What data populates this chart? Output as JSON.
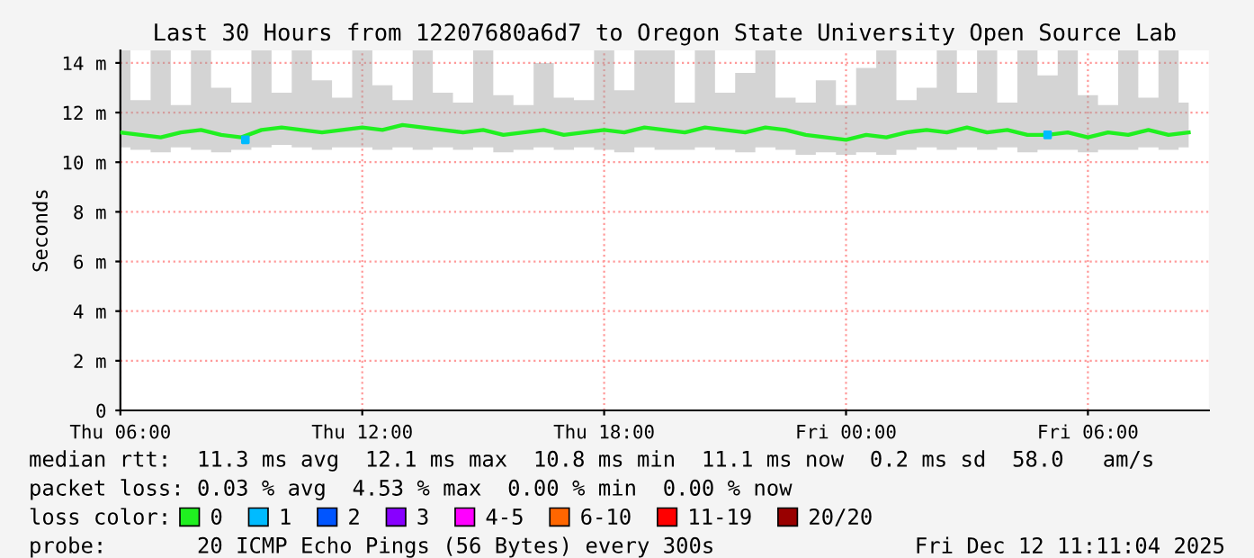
{
  "chart_data": {
    "type": "line",
    "title": "Last 30 Hours from 12207680a6d7 to Oregon State University Open Source Lab",
    "ylabel": "Seconds",
    "xlim": [
      "2025-12-11T06:00",
      "2025-12-12T09:00"
    ],
    "xticks": [
      {
        "value": "2025-12-11T06:00",
        "label": "Thu 06:00"
      },
      {
        "value": "2025-12-11T12:00",
        "label": "Thu 12:00"
      },
      {
        "value": "2025-12-11T18:00",
        "label": "Thu 18:00"
      },
      {
        "value": "2025-12-12T00:00",
        "label": "Fri 00:00"
      },
      {
        "value": "2025-12-12T06:00",
        "label": "Fri 06:00"
      }
    ],
    "ylim": [
      0,
      14.5
    ],
    "yticks": [
      0,
      {
        "value": 2,
        "label": "2 m"
      },
      {
        "value": 4,
        "label": "4 m"
      },
      {
        "value": 6,
        "label": "6 m"
      },
      {
        "value": 8,
        "label": "8 m"
      },
      {
        "value": 10,
        "label": "10 m"
      },
      {
        "value": 12,
        "label": "12 m"
      },
      {
        "value": 14,
        "label": "14 m"
      }
    ],
    "grid": true,
    "legend": "bottom",
    "legend_title": "loss color:",
    "series": [
      {
        "name": "0",
        "color": "#20f020",
        "x": [
          "2025-12-11T06:00",
          "2025-12-11T06:30",
          "2025-12-11T07:00",
          "2025-12-11T07:30",
          "2025-12-11T08:00",
          "2025-12-11T08:30",
          "2025-12-11T09:00",
          "2025-12-11T09:30",
          "2025-12-11T10:00",
          "2025-12-11T10:30",
          "2025-12-11T11:00",
          "2025-12-11T11:30",
          "2025-12-11T12:00",
          "2025-12-11T12:30",
          "2025-12-11T13:00",
          "2025-12-11T13:30",
          "2025-12-11T14:00",
          "2025-12-11T14:30",
          "2025-12-11T15:00",
          "2025-12-11T15:30",
          "2025-12-11T16:00",
          "2025-12-11T16:30",
          "2025-12-11T17:00",
          "2025-12-11T17:30",
          "2025-12-11T18:00",
          "2025-12-11T18:30",
          "2025-12-11T19:00",
          "2025-12-11T19:30",
          "2025-12-11T20:00",
          "2025-12-11T20:30",
          "2025-12-11T21:00",
          "2025-12-11T21:30",
          "2025-12-11T22:00",
          "2025-12-11T22:30",
          "2025-12-11T23:00",
          "2025-12-11T23:30",
          "2025-12-12T00:00",
          "2025-12-12T00:30",
          "2025-12-12T01:00",
          "2025-12-12T01:30",
          "2025-12-12T02:00",
          "2025-12-12T02:30",
          "2025-12-12T03:00",
          "2025-12-12T03:30",
          "2025-12-12T04:00",
          "2025-12-12T04:30",
          "2025-12-12T05:00",
          "2025-12-12T05:30",
          "2025-12-12T06:00",
          "2025-12-12T06:30",
          "2025-12-12T07:00",
          "2025-12-12T07:30",
          "2025-12-12T08:00",
          "2025-12-12T08:30"
        ],
        "values": [
          11.2,
          11.1,
          11.0,
          11.2,
          11.3,
          11.1,
          11.0,
          11.3,
          11.4,
          11.3,
          11.2,
          11.3,
          11.4,
          11.3,
          11.5,
          11.4,
          11.3,
          11.2,
          11.3,
          11.1,
          11.2,
          11.3,
          11.1,
          11.2,
          11.3,
          11.2,
          11.4,
          11.3,
          11.2,
          11.4,
          11.3,
          11.2,
          11.4,
          11.3,
          11.1,
          11.0,
          10.9,
          11.1,
          11.0,
          11.2,
          11.3,
          11.2,
          11.4,
          11.2,
          11.3,
          11.1,
          11.1,
          11.2,
          11.0,
          11.2,
          11.1,
          11.3,
          11.1,
          11.2
        ],
        "lower": [
          10.6,
          10.5,
          10.4,
          10.6,
          10.5,
          10.4,
          10.5,
          10.6,
          10.7,
          10.6,
          10.5,
          10.6,
          10.6,
          10.5,
          10.6,
          10.5,
          10.6,
          10.5,
          10.6,
          10.4,
          10.5,
          10.6,
          10.5,
          10.6,
          10.5,
          10.4,
          10.6,
          10.5,
          10.5,
          10.6,
          10.5,
          10.4,
          10.6,
          10.5,
          10.3,
          10.4,
          10.3,
          10.4,
          10.3,
          10.5,
          10.6,
          10.5,
          10.6,
          10.5,
          10.6,
          10.4,
          10.5,
          10.5,
          10.4,
          10.5,
          10.5,
          10.6,
          10.5,
          10.6
        ],
        "upper": [
          14.5,
          12.5,
          14.5,
          12.3,
          14.5,
          13.0,
          12.4,
          14.5,
          12.8,
          14.5,
          13.3,
          12.6,
          14.5,
          13.1,
          12.5,
          14.5,
          12.8,
          12.4,
          14.5,
          12.7,
          12.3,
          14.0,
          12.6,
          12.5,
          14.5,
          12.9,
          14.5,
          14.5,
          12.4,
          14.5,
          12.8,
          13.6,
          14.5,
          12.6,
          12.4,
          13.3,
          12.3,
          13.8,
          14.5,
          12.5,
          13.0,
          14.5,
          12.8,
          14.5,
          12.4,
          14.5,
          13.5,
          14.5,
          12.7,
          12.3,
          14.5,
          12.6,
          14.5,
          12.4
        ]
      },
      {
        "name": "1",
        "color": "#00bbff",
        "type": "scatter",
        "marker": "square",
        "x": [
          "2025-12-11T09:06",
          "2025-12-12T05:00"
        ],
        "values": [
          10.9,
          11.1
        ]
      },
      {
        "name": "2",
        "color": "#0055ff"
      },
      {
        "name": "3",
        "color": "#8800ff"
      },
      {
        "name": "4-5",
        "color": "#ff00ff"
      },
      {
        "name": "6-10",
        "color": "#ff6600"
      },
      {
        "name": "11-19",
        "color": "#ff0000"
      },
      {
        "name": "20/20",
        "color": "#990000"
      }
    ],
    "annotations": [
      "median rtt:  11.3 ms avg  12.1 ms max  10.8 ms min  11.1 ms now  0.2 ms sd  58.0   am/s",
      "packet loss: 0.03 % avg  4.53 % max  0.00 % min  0.00 % now",
      "probe:       20 ICMP Echo Pings (56 Bytes) every 300s",
      "Fri Dec 12 11:11:04 2025"
    ]
  }
}
